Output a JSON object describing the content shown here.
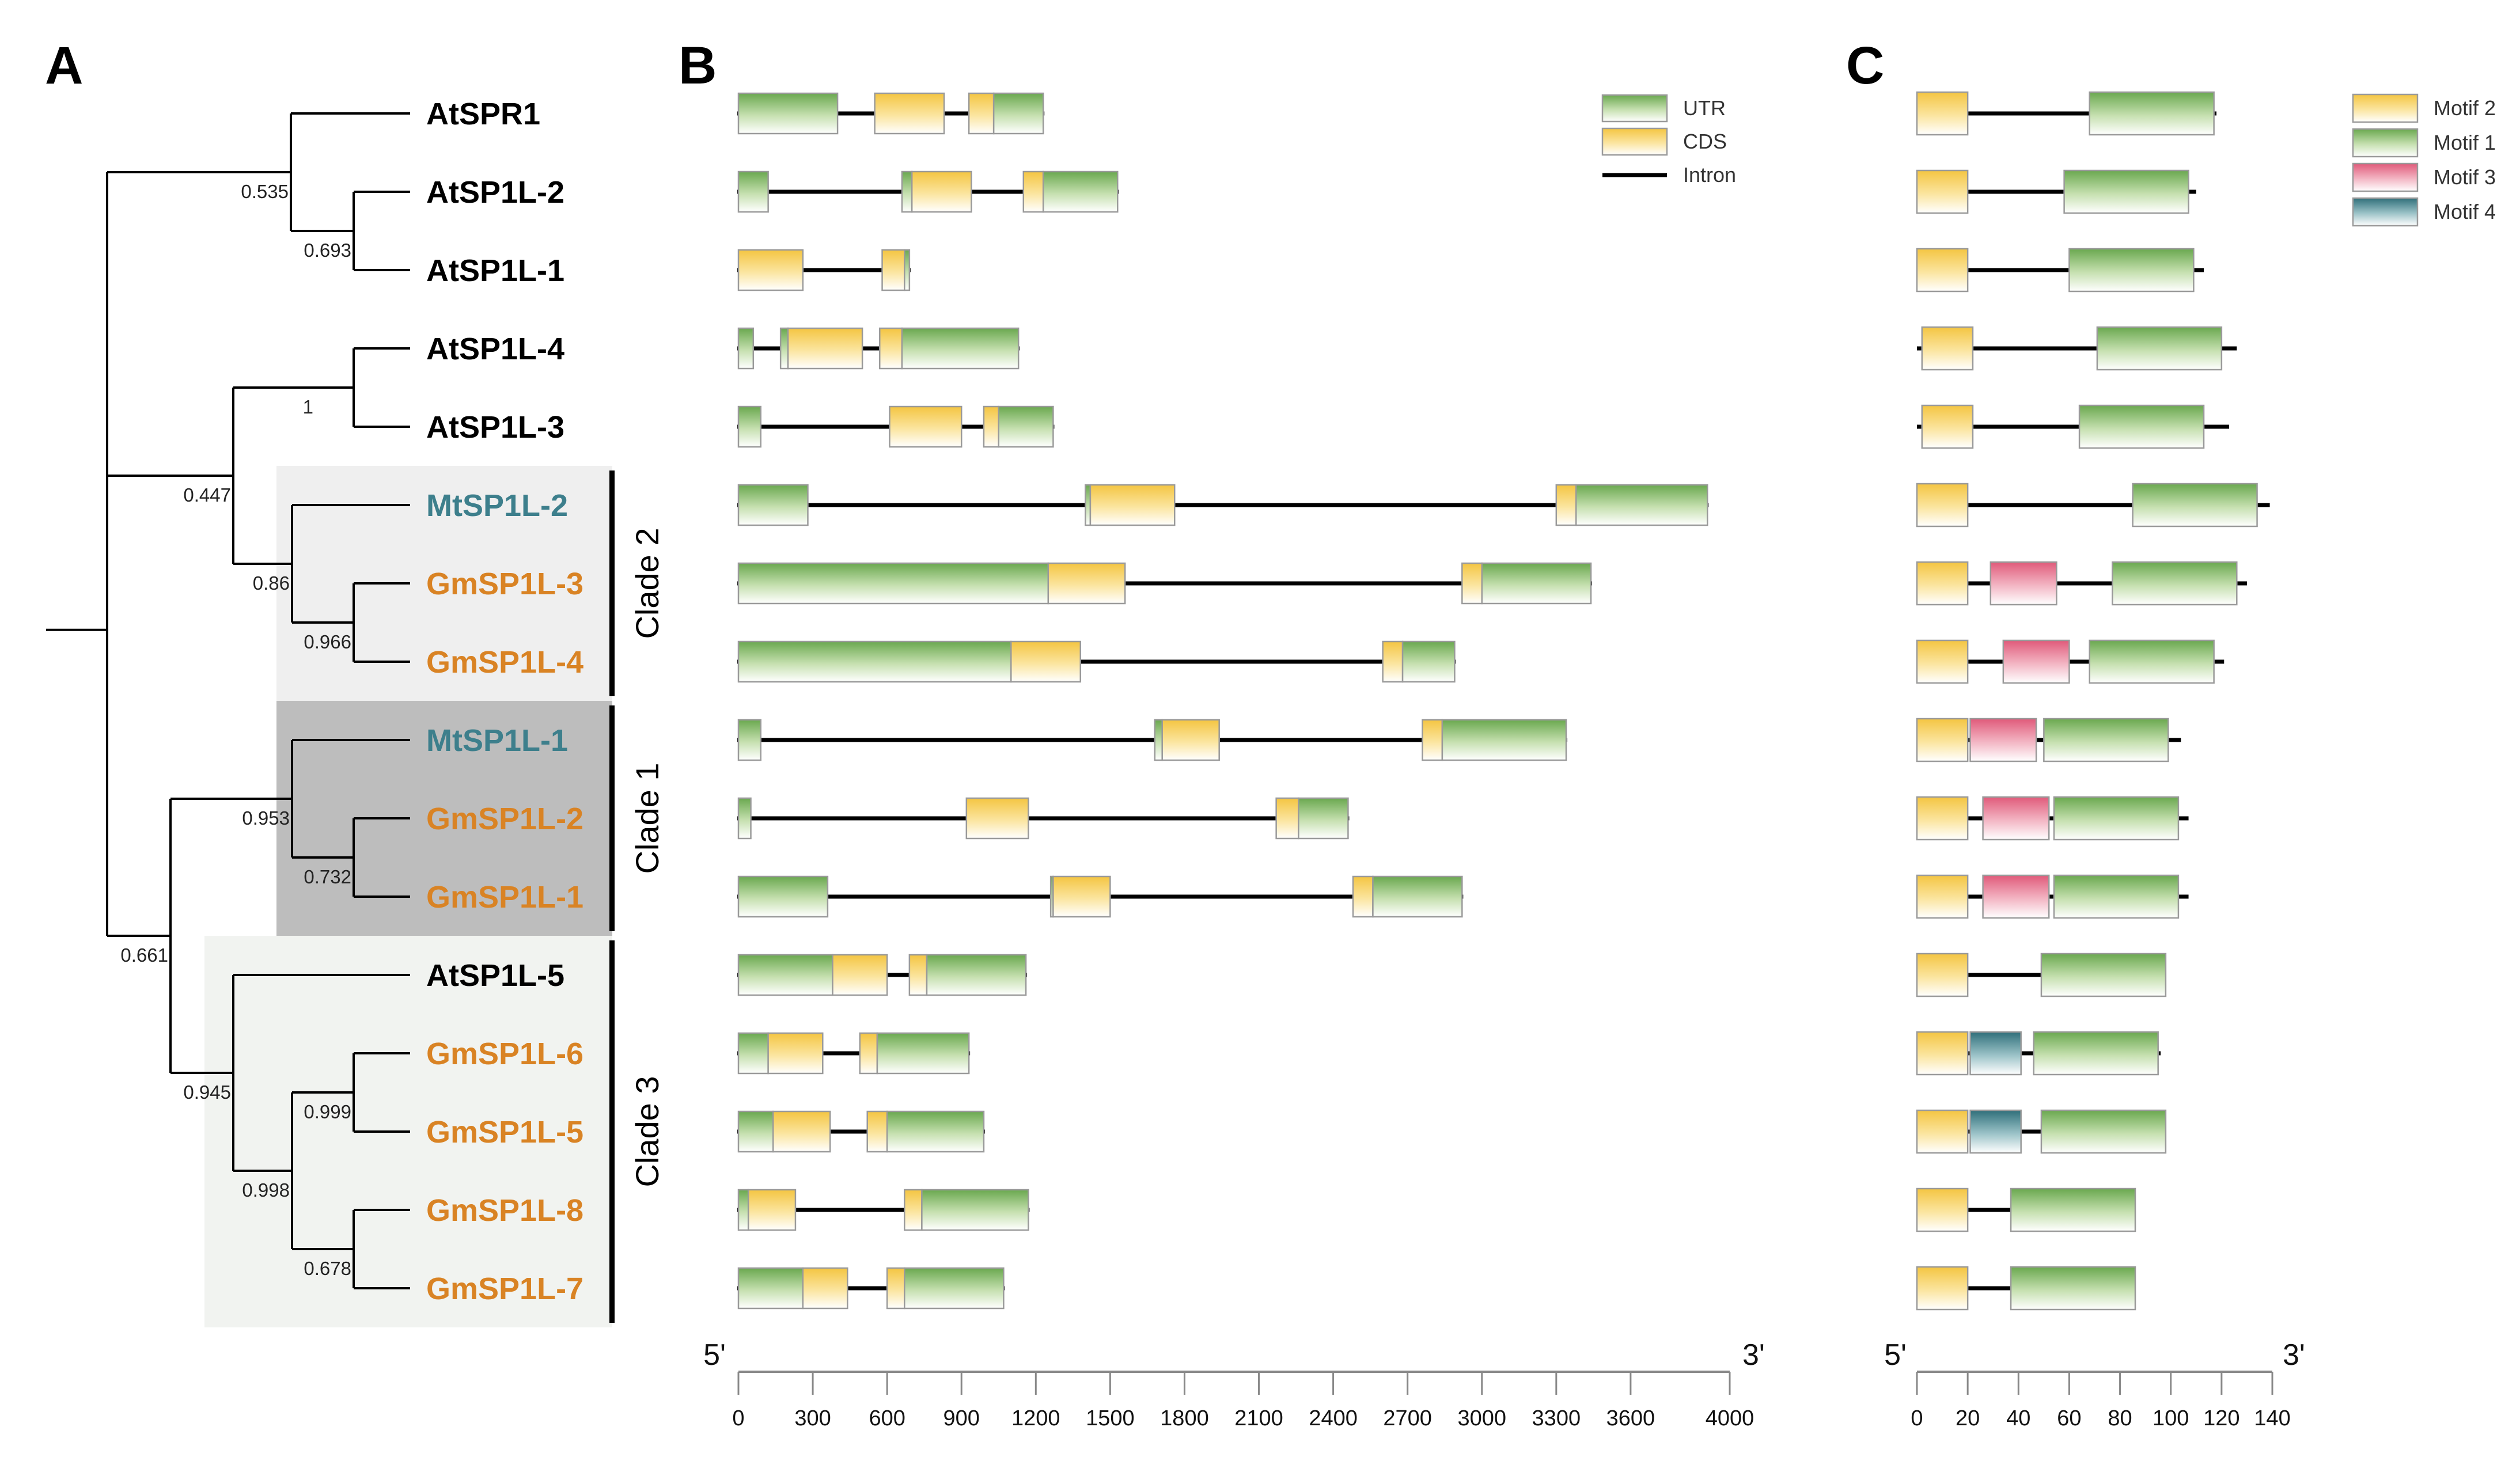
{
  "panels": {
    "a": "A",
    "b": "B",
    "c": "C"
  },
  "colors": {
    "at": "#000000",
    "mt": "#3d7f8c",
    "gm": "#d98324",
    "clade1_bg": "#bdbdbd",
    "clade2_bg": "#efefef",
    "clade3_bg": "#f1f3f0"
  },
  "leaves": [
    {
      "name": "AtSPR1",
      "species": "at"
    },
    {
      "name": "AtSP1L-2",
      "species": "at"
    },
    {
      "name": "AtSP1L-1",
      "species": "at"
    },
    {
      "name": "AtSP1L-4",
      "species": "at"
    },
    {
      "name": "AtSP1L-3",
      "species": "at"
    },
    {
      "name": "MtSP1L-2",
      "species": "mt"
    },
    {
      "name": "GmSP1L-3",
      "species": "gm"
    },
    {
      "name": "GmSP1L-4",
      "species": "gm"
    },
    {
      "name": "MtSP1L-1",
      "species": "mt"
    },
    {
      "name": "GmSP1L-2",
      "species": "gm"
    },
    {
      "name": "GmSP1L-1",
      "species": "gm"
    },
    {
      "name": "AtSP1L-5",
      "species": "at"
    },
    {
      "name": "GmSP1L-6",
      "species": "gm"
    },
    {
      "name": "GmSP1L-5",
      "species": "gm"
    },
    {
      "name": "GmSP1L-8",
      "species": "gm"
    },
    {
      "name": "GmSP1L-7",
      "species": "gm"
    }
  ],
  "bootstrap": [
    "0.535",
    "0.693",
    "1",
    "0.447",
    "0.86",
    "0.966",
    "0.953",
    "0.732",
    "0.661",
    "0.945",
    "0.999",
    "0.998",
    "0.678"
  ],
  "clades": [
    {
      "label": "Clade 2",
      "first": 5,
      "last": 7
    },
    {
      "label": "Clade 1",
      "first": 8,
      "last": 10
    },
    {
      "label": "Clade 3",
      "first": 11,
      "last": 15
    }
  ],
  "gene_legend": [
    {
      "label": "UTR",
      "type": "utr"
    },
    {
      "label": "CDS",
      "type": "cds"
    },
    {
      "label": "Intron",
      "type": "intron"
    }
  ],
  "gene_axis": {
    "start_label": "5'",
    "end_label": "3'",
    "max": 4000,
    "ticks": [
      0,
      300,
      600,
      900,
      1200,
      1500,
      1800,
      2100,
      2400,
      2700,
      3000,
      3300,
      3600,
      4000
    ]
  },
  "genes": [
    {
      "gene": "AtSPR1",
      "features": [
        [
          "utr",
          0,
          400
        ],
        [
          "cds",
          550,
          830
        ],
        [
          "cds",
          930,
          1030
        ],
        [
          "utr",
          1030,
          1230
        ]
      ]
    },
    {
      "gene": "AtSP1L-2",
      "features": [
        [
          "utr",
          0,
          120
        ],
        [
          "utr",
          660,
          700
        ],
        [
          "cds",
          700,
          940
        ],
        [
          "cds",
          1150,
          1230
        ],
        [
          "utr",
          1230,
          1530
        ]
      ]
    },
    {
      "gene": "AtSP1L-1",
      "features": [
        [
          "cds",
          0,
          260
        ],
        [
          "cds",
          580,
          670
        ],
        [
          "utr",
          670,
          690
        ]
      ]
    },
    {
      "gene": "AtSP1L-4",
      "features": [
        [
          "utr",
          0,
          60
        ],
        [
          "utr",
          170,
          200
        ],
        [
          "cds",
          200,
          500
        ],
        [
          "cds",
          570,
          660
        ],
        [
          "utr",
          660,
          1130
        ]
      ]
    },
    {
      "gene": "AtSP1L-3",
      "features": [
        [
          "utr",
          0,
          90
        ],
        [
          "cds",
          610,
          900
        ],
        [
          "cds",
          990,
          1050
        ],
        [
          "utr",
          1050,
          1270
        ]
      ]
    },
    {
      "gene": "MtSP1L-2",
      "features": [
        [
          "utr",
          0,
          280
        ],
        [
          "utr",
          1400,
          1420
        ],
        [
          "cds",
          1420,
          1760
        ],
        [
          "cds",
          3300,
          3380
        ],
        [
          "utr",
          3380,
          3910
        ]
      ]
    },
    {
      "gene": "GmSP1L-3",
      "features": [
        [
          "utr",
          0,
          1250
        ],
        [
          "cds",
          1250,
          1560
        ],
        [
          "cds",
          2920,
          3000
        ],
        [
          "utr",
          3000,
          3440
        ]
      ]
    },
    {
      "gene": "GmSP1L-4",
      "features": [
        [
          "utr",
          0,
          1100
        ],
        [
          "cds",
          1100,
          1380
        ],
        [
          "cds",
          2600,
          2680
        ],
        [
          "utr",
          2680,
          2890
        ]
      ]
    },
    {
      "gene": "MtSP1L-1",
      "features": [
        [
          "utr",
          0,
          90
        ],
        [
          "utr",
          1680,
          1710
        ],
        [
          "cds",
          1710,
          1940
        ],
        [
          "cds",
          2760,
          2840
        ],
        [
          "utr",
          2840,
          3340
        ]
      ]
    },
    {
      "gene": "GmSP1L-2",
      "features": [
        [
          "utr",
          0,
          50
        ],
        [
          "cds",
          920,
          1170
        ],
        [
          "cds",
          2170,
          2260
        ],
        [
          "utr",
          2260,
          2460
        ]
      ]
    },
    {
      "gene": "GmSP1L-1",
      "features": [
        [
          "utr",
          0,
          360
        ],
        [
          "utr",
          1260,
          1270
        ],
        [
          "cds",
          1270,
          1500
        ],
        [
          "cds",
          2480,
          2560
        ],
        [
          "utr",
          2560,
          2920
        ]
      ]
    },
    {
      "gene": "AtSP1L-5",
      "features": [
        [
          "utr",
          0,
          380
        ],
        [
          "cds",
          380,
          600
        ],
        [
          "cds",
          690,
          760
        ],
        [
          "utr",
          760,
          1160
        ]
      ]
    },
    {
      "gene": "GmSP1L-6",
      "features": [
        [
          "utr",
          0,
          120
        ],
        [
          "cds",
          120,
          340
        ],
        [
          "cds",
          490,
          560
        ],
        [
          "utr",
          560,
          930
        ]
      ]
    },
    {
      "gene": "GmSP1L-5",
      "features": [
        [
          "utr",
          0,
          140
        ],
        [
          "cds",
          140,
          370
        ],
        [
          "cds",
          520,
          600
        ],
        [
          "utr",
          600,
          990
        ]
      ]
    },
    {
      "gene": "GmSP1L-8",
      "features": [
        [
          "utr",
          0,
          40
        ],
        [
          "cds",
          40,
          230
        ],
        [
          "cds",
          670,
          740
        ],
        [
          "utr",
          740,
          1170
        ]
      ]
    },
    {
      "gene": "GmSP1L-7",
      "features": [
        [
          "utr",
          0,
          260
        ],
        [
          "cds",
          260,
          440
        ],
        [
          "cds",
          600,
          670
        ],
        [
          "utr",
          670,
          1070
        ]
      ]
    }
  ],
  "motif_legend": [
    {
      "label": "Motif 2",
      "type": "m2"
    },
    {
      "label": "Motif 1",
      "type": "m1"
    },
    {
      "label": "Motif 3",
      "type": "m3"
    },
    {
      "label": "Motif 4",
      "type": "m4"
    }
  ],
  "motif_axis": {
    "start_label": "5'",
    "end_label": "3'",
    "max": 140,
    "ticks": [
      0,
      20,
      40,
      60,
      80,
      100,
      120,
      140
    ]
  },
  "motifs": [
    {
      "gene": "AtSPR1",
      "length": 118,
      "motifs": [
        [
          "m2",
          0,
          20
        ],
        [
          "m1",
          68,
          117
        ]
      ]
    },
    {
      "gene": "AtSP1L-2",
      "length": 110,
      "motifs": [
        [
          "m2",
          0,
          20
        ],
        [
          "m1",
          58,
          107
        ]
      ]
    },
    {
      "gene": "AtSP1L-1",
      "length": 113,
      "motifs": [
        [
          "m2",
          0,
          20
        ],
        [
          "m1",
          60,
          109
        ]
      ]
    },
    {
      "gene": "AtSP1L-4",
      "length": 126,
      "motifs": [
        [
          "m2",
          2,
          22
        ],
        [
          "m1",
          71,
          120
        ]
      ]
    },
    {
      "gene": "AtSP1L-3",
      "length": 123,
      "motifs": [
        [
          "m2",
          2,
          22
        ],
        [
          "m1",
          64,
          113
        ]
      ]
    },
    {
      "gene": "MtSP1L-2",
      "length": 139,
      "motifs": [
        [
          "m2",
          0,
          20
        ],
        [
          "m1",
          85,
          134
        ]
      ]
    },
    {
      "gene": "GmSP1L-3",
      "length": 130,
      "motifs": [
        [
          "m2",
          0,
          20
        ],
        [
          "m3",
          29,
          55
        ],
        [
          "m1",
          77,
          126
        ]
      ]
    },
    {
      "gene": "GmSP1L-4",
      "length": 121,
      "motifs": [
        [
          "m2",
          0,
          20
        ],
        [
          "m3",
          34,
          60
        ],
        [
          "m1",
          68,
          117
        ]
      ]
    },
    {
      "gene": "MtSP1L-1",
      "length": 104,
      "motifs": [
        [
          "m2",
          0,
          20
        ],
        [
          "m3",
          21,
          47
        ],
        [
          "m1",
          50,
          99
        ]
      ]
    },
    {
      "gene": "GmSP1L-2",
      "length": 107,
      "motifs": [
        [
          "m2",
          0,
          20
        ],
        [
          "m3",
          26,
          52
        ],
        [
          "m1",
          54,
          103
        ]
      ]
    },
    {
      "gene": "GmSP1L-1",
      "length": 107,
      "motifs": [
        [
          "m2",
          0,
          20
        ],
        [
          "m3",
          26,
          52
        ],
        [
          "m1",
          54,
          103
        ]
      ]
    },
    {
      "gene": "AtSP1L-5",
      "length": 98,
      "motifs": [
        [
          "m2",
          0,
          20
        ],
        [
          "m1",
          49,
          98
        ]
      ]
    },
    {
      "gene": "GmSP1L-6",
      "length": 96,
      "motifs": [
        [
          "m2",
          0,
          20
        ],
        [
          "m4",
          21,
          41
        ],
        [
          "m1",
          46,
          95
        ]
      ]
    },
    {
      "gene": "GmSP1L-5",
      "length": 98,
      "motifs": [
        [
          "m2",
          0,
          20
        ],
        [
          "m4",
          21,
          41
        ],
        [
          "m1",
          49,
          98
        ]
      ]
    },
    {
      "gene": "GmSP1L-8",
      "length": 86,
      "motifs": [
        [
          "m2",
          0,
          20
        ],
        [
          "m1",
          37,
          86
        ]
      ]
    },
    {
      "gene": "GmSP1L-7",
      "length": 86,
      "motifs": [
        [
          "m2",
          0,
          20
        ],
        [
          "m1",
          37,
          86
        ]
      ]
    }
  ]
}
